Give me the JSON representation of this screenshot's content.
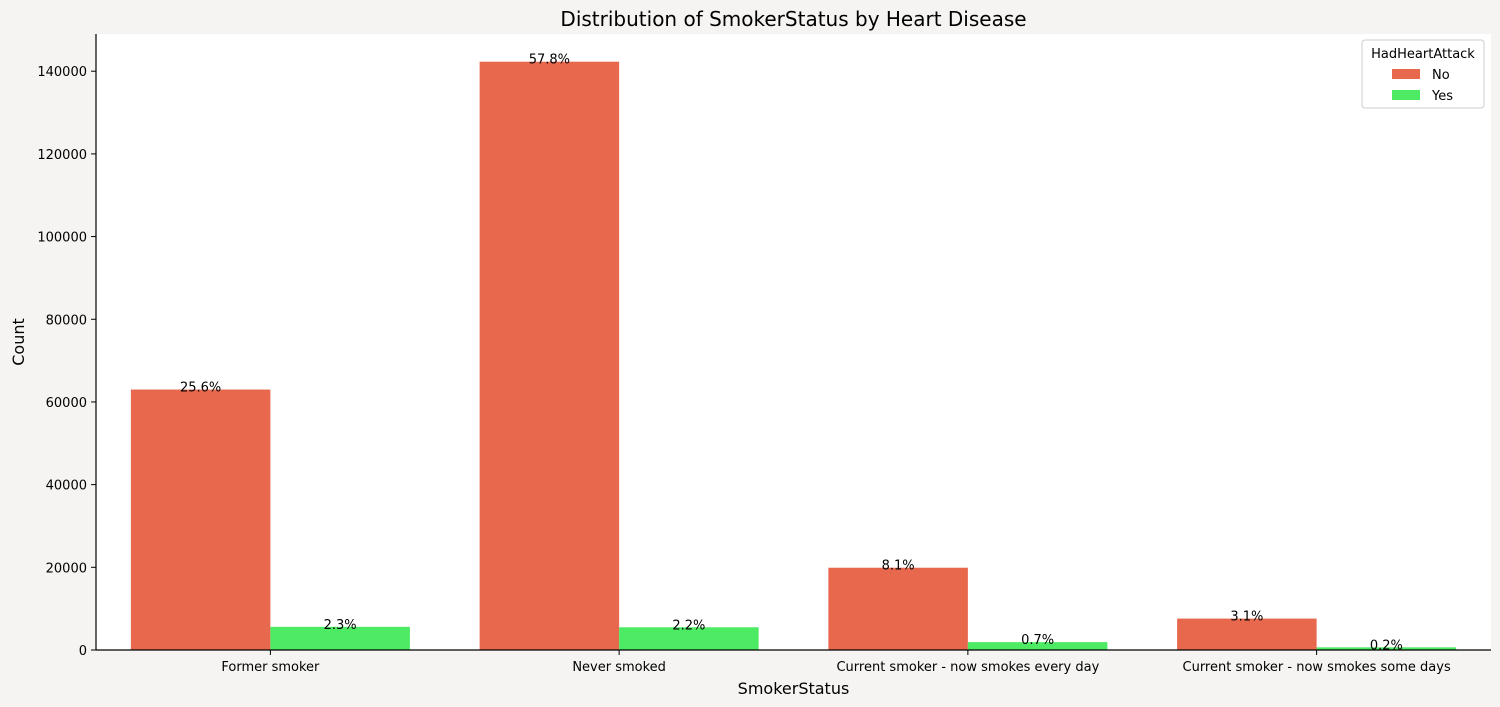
{
  "chart_data": {
    "type": "bar",
    "title": "Distribution of SmokerStatus by Heart Disease",
    "xlabel": "SmokerStatus",
    "ylabel": "Count",
    "categories": [
      "Former smoker",
      "Never smoked",
      "Current smoker - now smokes every day",
      "Current smoker - now smokes some days"
    ],
    "series": [
      {
        "name": "No",
        "color": "#e8684e",
        "values": [
          63000,
          142300,
          19900,
          7600
        ],
        "labels": [
          "25.6%",
          "57.8%",
          "8.1%",
          "3.1%"
        ]
      },
      {
        "name": "Yes",
        "color": "#4dea63",
        "values": [
          5600,
          5500,
          1900,
          650
        ],
        "labels": [
          "2.3%",
          "2.2%",
          "0.7%",
          "0.2%"
        ]
      }
    ],
    "ylim": [
      0,
      149000
    ],
    "yticks": [
      0,
      20000,
      40000,
      60000,
      80000,
      100000,
      120000,
      140000
    ],
    "ytick_labels": [
      "0",
      "20000",
      "40000",
      "60000",
      "80000",
      "100000",
      "120000",
      "140000"
    ],
    "legend": {
      "title": "HadHeartAttack",
      "position": "top-right"
    },
    "grid": false
  },
  "colors": {
    "plot_background": "#ffffff",
    "figure_background": "#f5f4f2",
    "axis": "#000000"
  }
}
